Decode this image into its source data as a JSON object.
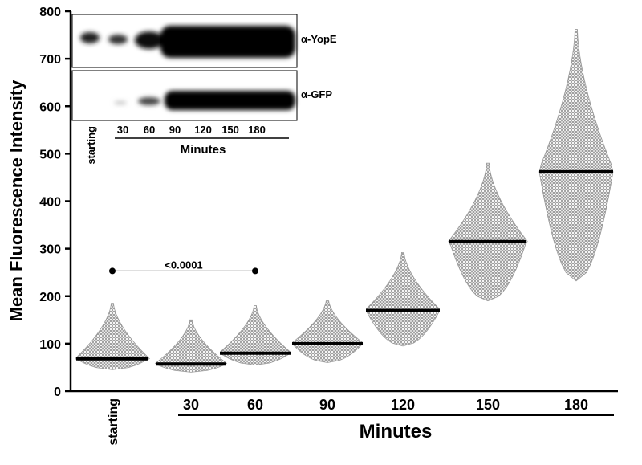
{
  "chart_data": {
    "type": "dot",
    "y_label": "Mean Fluorescence Intensity",
    "x_group_label": "Minutes",
    "categories": [
      "starting",
      "30",
      "60",
      "90",
      "120",
      "150",
      "180"
    ],
    "medians": [
      68,
      57,
      80,
      100,
      170,
      315,
      462
    ],
    "min": [
      45,
      40,
      55,
      60,
      95,
      190,
      232
    ],
    "max": [
      185,
      150,
      180,
      192,
      292,
      480,
      762
    ],
    "ylim": [
      0,
      800
    ],
    "yticks": [
      0,
      100,
      200,
      300,
      400,
      500,
      600,
      700,
      800
    ],
    "annotation": {
      "text": "<0.0001",
      "y": 253
    }
  },
  "inset": {
    "labels": [
      "α-YopE",
      "α-GFP"
    ],
    "lanes": [
      "starting",
      "30",
      "60",
      "90",
      "120",
      "150",
      "180"
    ],
    "x_label": "Minutes"
  }
}
